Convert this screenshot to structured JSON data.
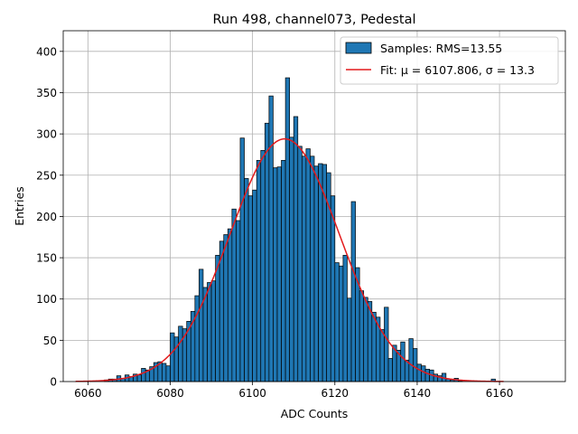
{
  "chart_data": {
    "type": "bar",
    "title": "Run 498, channel073, Pedestal",
    "xlabel": "ADC Counts",
    "ylabel": "Entries",
    "xlim": [
      6054,
      6176
    ],
    "ylim": [
      0,
      425
    ],
    "xticks": [
      6060,
      6080,
      6100,
      6120,
      6140,
      6160
    ],
    "yticks": [
      0,
      50,
      100,
      150,
      200,
      250,
      300,
      350,
      400
    ],
    "grid": true,
    "legend_position": "top-right",
    "bin_width": 1,
    "histogram": {
      "name": "Samples: RMS=13.55",
      "color": "#1f77b4",
      "x": [
        6064,
        6065,
        6066,
        6067,
        6068,
        6069,
        6070,
        6071,
        6072,
        6073,
        6074,
        6075,
        6076,
        6077,
        6078,
        6079,
        6080,
        6081,
        6082,
        6083,
        6084,
        6085,
        6086,
        6087,
        6088,
        6089,
        6090,
        6091,
        6092,
        6093,
        6094,
        6095,
        6096,
        6097,
        6098,
        6099,
        6100,
        6101,
        6102,
        6103,
        6104,
        6105,
        6106,
        6107,
        6108,
        6109,
        6110,
        6111,
        6112,
        6113,
        6114,
        6115,
        6116,
        6117,
        6118,
        6119,
        6120,
        6121,
        6122,
        6123,
        6124,
        6125,
        6126,
        6127,
        6128,
        6129,
        6130,
        6131,
        6132,
        6133,
        6134,
        6135,
        6136,
        6137,
        6138,
        6139,
        6140,
        6141,
        6142,
        6143,
        6144,
        6145,
        6146,
        6147,
        6148,
        6149,
        6150,
        6158
      ],
      "values": [
        2,
        3,
        3,
        7,
        4,
        8,
        6,
        9,
        8,
        16,
        14,
        18,
        23,
        24,
        22,
        19,
        59,
        54,
        67,
        64,
        73,
        85,
        104,
        136,
        114,
        120,
        122,
        153,
        170,
        178,
        185,
        209,
        195,
        295,
        246,
        225,
        232,
        268,
        280,
        313,
        346,
        259,
        260,
        268,
        368,
        296,
        321,
        285,
        273,
        282,
        273,
        261,
        264,
        263,
        253,
        225,
        144,
        140,
        153,
        101,
        218,
        138,
        110,
        102,
        97,
        84,
        78,
        63,
        90,
        28,
        44,
        38,
        48,
        26,
        52,
        40,
        21,
        19,
        15,
        14,
        9,
        7,
        10,
        3,
        2,
        4,
        1,
        3
      ]
    },
    "fit": {
      "name": "Fit: μ = 6107.806, σ = 13.3",
      "color": "#e31a1c",
      "mu": 6107.806,
      "sigma": 13.3,
      "amplitude": 294,
      "x_range": [
        6057,
        6161
      ]
    }
  }
}
